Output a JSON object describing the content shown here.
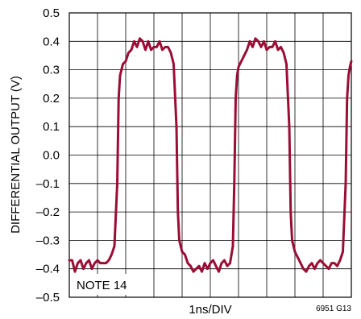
{
  "chart_data": {
    "type": "line",
    "title": "",
    "xlabel": "1ns/DIV",
    "ylabel": "DIFFERENTIAL OUTPUT (V)",
    "ylim": [
      -0.5,
      0.5
    ],
    "xlim": [
      0,
      10
    ],
    "x_divisions": 10,
    "y_ticks": [
      0.5,
      0.4,
      0.3,
      0.2,
      0.1,
      0.0,
      -0.1,
      -0.2,
      -0.3,
      -0.4,
      -0.5
    ],
    "y_tick_labels": [
      "0.5",
      "0.4",
      "0.3",
      "0.2",
      "0.1",
      "0.0",
      "–0.1",
      "–0.2",
      "–0.3",
      "–0.4",
      "–0.5"
    ],
    "grid": true,
    "annotation": "NOTE 14",
    "figure_code": "6951 G13",
    "series": [
      {
        "color": "#9b0d35",
        "x": [
          0.0,
          0.1,
          0.2,
          0.3,
          0.4,
          0.5,
          0.6,
          0.7,
          0.8,
          0.9,
          1.0,
          1.1,
          1.2,
          1.3,
          1.4,
          1.5,
          1.6,
          1.7,
          1.75,
          1.8,
          1.85,
          1.9,
          2.0,
          2.1,
          2.2,
          2.3,
          2.4,
          2.5,
          2.6,
          2.7,
          2.8,
          2.9,
          3.0,
          3.1,
          3.2,
          3.3,
          3.4,
          3.5,
          3.6,
          3.7,
          3.8,
          3.85,
          3.9,
          3.95,
          4.0,
          4.1,
          4.2,
          4.3,
          4.4,
          4.5,
          4.6,
          4.7,
          4.8,
          4.9,
          5.0,
          5.1,
          5.2,
          5.3,
          5.4,
          5.5,
          5.6,
          5.7,
          5.8,
          5.85,
          5.9,
          5.95,
          6.0,
          6.1,
          6.2,
          6.3,
          6.4,
          6.5,
          6.6,
          6.7,
          6.8,
          6.9,
          7.0,
          7.1,
          7.2,
          7.3,
          7.4,
          7.5,
          7.6,
          7.7,
          7.8,
          7.85,
          7.9,
          7.95,
          8.0,
          8.1,
          8.2,
          8.3,
          8.4,
          8.5,
          8.6,
          8.7,
          8.8,
          8.9,
          9.0,
          9.1,
          9.2,
          9.3,
          9.4,
          9.5,
          9.6,
          9.7,
          9.8,
          9.85,
          9.9,
          9.95,
          10.0
        ],
        "y": [
          -0.37,
          -0.37,
          -0.41,
          -0.38,
          -0.37,
          -0.4,
          -0.38,
          -0.37,
          -0.4,
          -0.38,
          -0.37,
          -0.38,
          -0.38,
          -0.38,
          -0.37,
          -0.35,
          -0.32,
          -0.1,
          0.2,
          0.28,
          0.3,
          0.32,
          0.33,
          0.36,
          0.37,
          0.4,
          0.38,
          0.41,
          0.4,
          0.37,
          0.4,
          0.37,
          0.38,
          0.38,
          0.4,
          0.37,
          0.38,
          0.38,
          0.36,
          0.32,
          0.1,
          -0.2,
          -0.3,
          -0.32,
          -0.34,
          -0.35,
          -0.38,
          -0.39,
          -0.41,
          -0.4,
          -0.39,
          -0.41,
          -0.38,
          -0.4,
          -0.38,
          -0.37,
          -0.39,
          -0.41,
          -0.38,
          -0.37,
          -0.39,
          -0.38,
          -0.32,
          -0.1,
          0.2,
          0.28,
          0.31,
          0.33,
          0.35,
          0.37,
          0.4,
          0.38,
          0.41,
          0.4,
          0.38,
          0.4,
          0.37,
          0.38,
          0.38,
          0.4,
          0.37,
          0.38,
          0.36,
          0.32,
          0.1,
          -0.2,
          -0.3,
          -0.32,
          -0.34,
          -0.36,
          -0.38,
          -0.4,
          -0.41,
          -0.39,
          -0.38,
          -0.4,
          -0.38,
          -0.37,
          -0.38,
          -0.39,
          -0.4,
          -0.38,
          -0.38,
          -0.39,
          -0.37,
          -0.34,
          -0.1,
          0.2,
          0.28,
          0.31,
          0.33
        ]
      }
    ]
  }
}
